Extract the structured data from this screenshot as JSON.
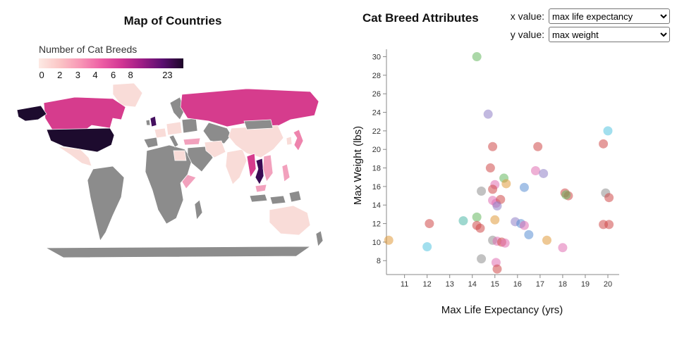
{
  "left_panel": {
    "title": "Map of Countries",
    "legend": {
      "title": "Number of Cat Breeds",
      "gradient": [
        "#fdeae4",
        "#fbc6c6",
        "#f897b6",
        "#ee60a5",
        "#d23694",
        "#9c1c85",
        "#5a0e70",
        "#1d0628"
      ],
      "ticks": [
        {
          "label": "0",
          "pos": 0.02
        },
        {
          "label": "2",
          "pos": 0.145
        },
        {
          "label": "3",
          "pos": 0.27
        },
        {
          "label": "4",
          "pos": 0.39
        },
        {
          "label": "6",
          "pos": 0.515
        },
        {
          "label": "8",
          "pos": 0.635
        },
        {
          "label": "23",
          "pos": 0.89
        }
      ]
    }
  },
  "right_panel": {
    "title": "Cat Breed Attributes",
    "controls": {
      "x_label": "x value:",
      "x_value": "max life expectancy",
      "y_label": "y value:",
      "y_value": "max weight"
    }
  },
  "chart_data": [
    {
      "type": "choropleth",
      "title": "Map of Countries",
      "legend_title": "Number of Cat Breeds",
      "legend_tick_values": [
        0,
        2,
        3,
        4,
        6,
        8,
        23
      ],
      "no_data_color": "#8c8c8c",
      "countries": [
        {
          "name": "canada",
          "color": "#d63c8d"
        },
        {
          "name": "alaska",
          "color": "#1d0b2e"
        },
        {
          "name": "usa",
          "color": "#1d0b2e"
        },
        {
          "name": "greenland",
          "color": "#f9dcd8"
        },
        {
          "name": "mexico",
          "color": "#f9dcd8"
        },
        {
          "name": "south-america",
          "color": "#8c8c8c"
        },
        {
          "name": "africa",
          "color": "#8c8c8c"
        },
        {
          "name": "egypt",
          "color": "#f9dcd8"
        },
        {
          "name": "somalia",
          "color": "#f2a1bd"
        },
        {
          "name": "madagascar",
          "color": "#8c8c8c"
        },
        {
          "name": "iberia",
          "color": "#8c8c8c"
        },
        {
          "name": "france",
          "color": "#f9dcd8"
        },
        {
          "name": "uk",
          "color": "#45105f"
        },
        {
          "name": "ireland",
          "color": "#8c8c8c"
        },
        {
          "name": "central-europe",
          "color": "#f9dcd8"
        },
        {
          "name": "italy",
          "color": "#8c8c8c"
        },
        {
          "name": "scandinavia",
          "color": "#8c8c8c"
        },
        {
          "name": "eastern-europe",
          "color": "#8c8c8c"
        },
        {
          "name": "russia",
          "color": "#d63c8d"
        },
        {
          "name": "central-asia",
          "color": "#8c8c8c"
        },
        {
          "name": "turkey",
          "color": "#f2a1bd"
        },
        {
          "name": "arabia",
          "color": "#8c8c8c"
        },
        {
          "name": "iran",
          "color": "#f9dcd8"
        },
        {
          "name": "india",
          "color": "#f9dcd8"
        },
        {
          "name": "china",
          "color": "#f9dcd8"
        },
        {
          "name": "mongolia",
          "color": "#8c8c8c"
        },
        {
          "name": "myanmar",
          "color": "#d63c8d"
        },
        {
          "name": "thailand",
          "color": "#3a0a54"
        },
        {
          "name": "vietnam",
          "color": "#f2a1bd"
        },
        {
          "name": "malaysia",
          "color": "#f2a1bd"
        },
        {
          "name": "indonesia-west",
          "color": "#8c8c8c"
        },
        {
          "name": "indonesia-east",
          "color": "#8c8c8c"
        },
        {
          "name": "new-guinea",
          "color": "#8c8c8c"
        },
        {
          "name": "philippines",
          "color": "#f2a1bd"
        },
        {
          "name": "japan",
          "color": "#ee84ad"
        },
        {
          "name": "korea",
          "color": "#f9dcd8"
        },
        {
          "name": "australia",
          "color": "#f9dcd8"
        },
        {
          "name": "new-zealand",
          "color": "#8c8c8c"
        },
        {
          "name": "antarctica",
          "color": "#8c8c8c"
        }
      ]
    },
    {
      "type": "scatter",
      "title": "Cat Breed Attributes",
      "xlabel": "Max Life Expectancy (yrs)",
      "ylabel": "Max Weight (lbs)",
      "xlim": [
        10.2,
        20.5
      ],
      "ylim": [
        6.5,
        30.8
      ],
      "x_ticks": [
        11,
        12,
        13,
        14,
        15,
        16,
        17,
        18,
        19,
        20
      ],
      "y_ticks": [
        8,
        10,
        12,
        14,
        16,
        18,
        20,
        22,
        24,
        26,
        28,
        30
      ],
      "point_radius": 6.5,
      "point_opacity": 0.55,
      "points": [
        {
          "x": 14.2,
          "y": 30.0,
          "c": "#66b861"
        },
        {
          "x": 14.7,
          "y": 23.8,
          "c": "#8f7fc7"
        },
        {
          "x": 20.0,
          "y": 22.0,
          "c": "#55c5e0"
        },
        {
          "x": 19.8,
          "y": 20.6,
          "c": "#d04a4a"
        },
        {
          "x": 14.9,
          "y": 20.3,
          "c": "#d04a4a"
        },
        {
          "x": 16.9,
          "y": 20.3,
          "c": "#d04a4a"
        },
        {
          "x": 14.8,
          "y": 18.0,
          "c": "#d04a4a"
        },
        {
          "x": 16.8,
          "y": 17.7,
          "c": "#e06fb2"
        },
        {
          "x": 17.15,
          "y": 17.4,
          "c": "#8f7fc7"
        },
        {
          "x": 15.4,
          "y": 16.9,
          "c": "#66b861"
        },
        {
          "x": 15.5,
          "y": 16.3,
          "c": "#e09b3d"
        },
        {
          "x": 15.0,
          "y": 16.2,
          "c": "#e06fb2"
        },
        {
          "x": 14.9,
          "y": 15.7,
          "c": "#d04a4a"
        },
        {
          "x": 16.3,
          "y": 15.9,
          "c": "#5b8fd4"
        },
        {
          "x": 14.4,
          "y": 15.5,
          "c": "#909090"
        },
        {
          "x": 18.1,
          "y": 15.3,
          "c": "#d04a4a"
        },
        {
          "x": 18.25,
          "y": 15.0,
          "c": "#d04a4a"
        },
        {
          "x": 18.15,
          "y": 15.1,
          "c": "#66b861"
        },
        {
          "x": 19.9,
          "y": 15.3,
          "c": "#909090"
        },
        {
          "x": 20.05,
          "y": 14.8,
          "c": "#d04a4a"
        },
        {
          "x": 14.9,
          "y": 14.5,
          "c": "#e06fb2"
        },
        {
          "x": 15.05,
          "y": 14.2,
          "c": "#e06fb2"
        },
        {
          "x": 15.25,
          "y": 14.6,
          "c": "#d04a4a"
        },
        {
          "x": 15.1,
          "y": 13.9,
          "c": "#8f7fc7"
        },
        {
          "x": 14.2,
          "y": 12.7,
          "c": "#66b861"
        },
        {
          "x": 12.1,
          "y": 12.0,
          "c": "#d04a4a"
        },
        {
          "x": 13.6,
          "y": 12.3,
          "c": "#4fb8a8"
        },
        {
          "x": 14.2,
          "y": 11.8,
          "c": "#d04a4a"
        },
        {
          "x": 14.35,
          "y": 11.5,
          "c": "#d04a4a"
        },
        {
          "x": 15.0,
          "y": 12.4,
          "c": "#e09b3d"
        },
        {
          "x": 15.9,
          "y": 12.2,
          "c": "#8f7fc7"
        },
        {
          "x": 16.15,
          "y": 12.0,
          "c": "#5b8fd4"
        },
        {
          "x": 16.3,
          "y": 11.8,
          "c": "#e06fb2"
        },
        {
          "x": 19.8,
          "y": 11.9,
          "c": "#d04a4a"
        },
        {
          "x": 20.05,
          "y": 11.9,
          "c": "#d04a4a"
        },
        {
          "x": 10.3,
          "y": 10.2,
          "c": "#e09b3d"
        },
        {
          "x": 12.0,
          "y": 9.5,
          "c": "#55c5e0"
        },
        {
          "x": 14.9,
          "y": 10.2,
          "c": "#909090"
        },
        {
          "x": 15.1,
          "y": 10.1,
          "c": "#e06fb2"
        },
        {
          "x": 15.3,
          "y": 10.0,
          "c": "#d04a4a"
        },
        {
          "x": 15.45,
          "y": 9.9,
          "c": "#e06fb2"
        },
        {
          "x": 16.5,
          "y": 10.8,
          "c": "#5b8fd4"
        },
        {
          "x": 17.3,
          "y": 10.2,
          "c": "#e09b3d"
        },
        {
          "x": 18.0,
          "y": 9.4,
          "c": "#e06fb2"
        },
        {
          "x": 14.4,
          "y": 8.2,
          "c": "#909090"
        },
        {
          "x": 15.05,
          "y": 7.8,
          "c": "#e06fb2"
        },
        {
          "x": 15.1,
          "y": 7.1,
          "c": "#d04a4a"
        }
      ]
    }
  ]
}
